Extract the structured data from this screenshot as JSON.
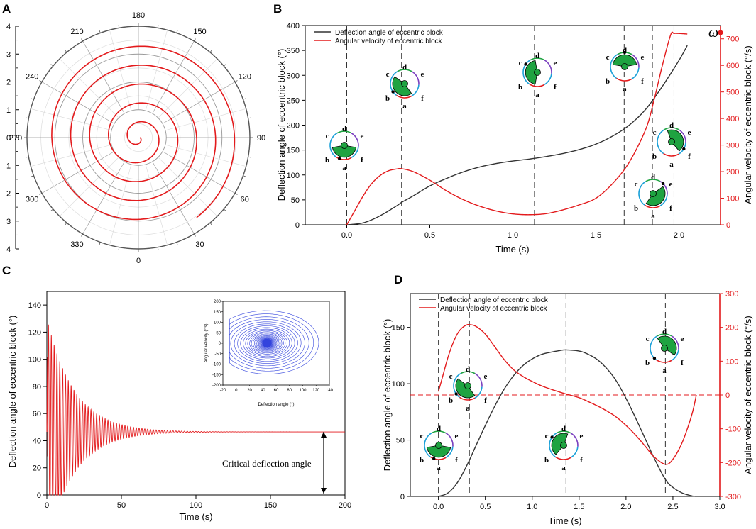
{
  "colors": {
    "deflection": "#333333",
    "angular": "#e31a1c",
    "phase": "#3344dd",
    "green": "#1fa341"
  },
  "panel_labels": [
    "A",
    "B",
    "C",
    "D"
  ],
  "chart_data": [
    {
      "id": "A",
      "type": "polar",
      "series_name": "Deflection angle of eccentric block",
      "radial_ticks_left": [
        "4",
        "3",
        "2",
        "1",
        "0",
        "1",
        "2",
        "3",
        "4"
      ],
      "angle_labels": [
        "180",
        "210",
        "240",
        "270",
        "300",
        "330",
        "0",
        "30",
        "60",
        "90",
        "120",
        "150"
      ],
      "angle_label_degrees": [
        180,
        210,
        240,
        270,
        300,
        330,
        0,
        30,
        60,
        90,
        120,
        150
      ],
      "r_max": 4,
      "spiral": {
        "r_start": 0.05,
        "r_end": 3.55,
        "turns": 5.15,
        "start_angle": 270
      }
    },
    {
      "id": "B",
      "type": "line",
      "xlabel": "Time (s)",
      "ylabel_left": "Deflection angle of eccentric block (°)",
      "ylabel_right": "Angular velocity of eccentric block (°/s)",
      "xlim": [
        -0.25,
        2.25
      ],
      "ylim_left": [
        0,
        400
      ],
      "ylim_right": [
        0,
        750
      ],
      "x_ticks": [
        0.0,
        0.5,
        1.0,
        1.5,
        2.0
      ],
      "x_tick_labels": [
        "0.0",
        "0.5",
        "1.0",
        "1.5",
        "2.0"
      ],
      "y_ticks_left": [
        0,
        50,
        100,
        150,
        200,
        250,
        300,
        350,
        400
      ],
      "y_ticks_right": [
        0,
        100,
        200,
        300,
        400,
        500,
        600,
        700
      ],
      "legend": [
        "Deflection angle of eccentric block",
        "Angular velocity of eccentric block"
      ],
      "omega_label": "ω",
      "vlines": [
        0.0,
        0.33,
        1.13,
        1.67,
        1.84,
        1.97
      ],
      "series": [
        {
          "name": "Deflection angle of eccentric block",
          "axis": "left",
          "x": [
            0,
            0.1,
            0.2,
            0.3,
            0.33,
            0.4,
            0.5,
            0.6,
            0.7,
            0.8,
            0.9,
            1.0,
            1.1,
            1.2,
            1.3,
            1.4,
            1.5,
            1.6,
            1.7,
            1.8,
            1.9,
            2.0,
            2.05
          ],
          "y": [
            0,
            4,
            18,
            38,
            45,
            58,
            78,
            93,
            106,
            116,
            123,
            128,
            132,
            137,
            143,
            151,
            162,
            178,
            200,
            232,
            278,
            330,
            360
          ]
        },
        {
          "name": "Angular velocity of eccentric block",
          "axis": "right",
          "x": [
            0,
            0.05,
            0.1,
            0.15,
            0.2,
            0.25,
            0.3,
            0.33,
            0.4,
            0.5,
            0.6,
            0.7,
            0.8,
            0.9,
            1.0,
            1.1,
            1.2,
            1.3,
            1.4,
            1.5,
            1.6,
            1.7,
            1.8,
            1.85,
            1.9,
            1.95,
            1.97,
            2.0,
            2.05
          ],
          "y": [
            0,
            55,
            110,
            155,
            185,
            203,
            210,
            211,
            200,
            168,
            128,
            95,
            70,
            52,
            41,
            38,
            42,
            56,
            75,
            100,
            155,
            235,
            360,
            470,
            600,
            715,
            720,
            720,
            718
          ]
        }
      ],
      "glyph_labels": [
        "a",
        "b",
        "c",
        "d",
        "e",
        "f"
      ]
    },
    {
      "id": "C",
      "type": "line",
      "xlabel": "Time (s)",
      "ylabel": "Deflection angle of eccentric block (°)",
      "xlim": [
        0,
        200
      ],
      "ylim": [
        0,
        150
      ],
      "x_ticks": [
        0,
        50,
        100,
        150,
        200
      ],
      "y_ticks": [
        0,
        20,
        40,
        60,
        80,
        100,
        120,
        140
      ],
      "series": [
        {
          "name": "Deflection angle of eccentric block",
          "equilibrium": 46.5,
          "initial_amplitude": 84,
          "peak": 130,
          "period": 1.9,
          "decay": 0.055
        }
      ],
      "annotation": "Critical deflection angle",
      "inset": {
        "type": "phase",
        "xlabel": "Deflection angle (°)",
        "ylabel": "Angular velocity (°/s)",
        "xlim": [
          -20,
          140
        ],
        "ylim": [
          -200,
          200
        ],
        "x_ticks": [
          -20,
          0,
          20,
          40,
          60,
          80,
          100,
          120,
          140
        ],
        "y_ticks": [
          -200,
          -150,
          -100,
          -50,
          0,
          50,
          100,
          150,
          200
        ],
        "center": [
          46.5,
          0
        ]
      }
    },
    {
      "id": "D",
      "type": "line",
      "xlabel": "Time (s)",
      "ylabel_left": "Deflection angle of eccentric block (°)",
      "ylabel_right": "Angular velocity of eccentric block (°/s)",
      "xlim": [
        -0.3,
        3.0
      ],
      "ylim_left": [
        0,
        180
      ],
      "ylim_right": [
        -300,
        300
      ],
      "x_ticks": [
        0.0,
        0.5,
        1.0,
        1.5,
        2.0,
        2.5,
        3.0
      ],
      "x_tick_labels": [
        "0.0",
        "0.5",
        "1.0",
        "1.5",
        "2.0",
        "2.5",
        "3.0"
      ],
      "y_ticks_left": [
        0,
        50,
        100,
        150
      ],
      "y_ticks_right": [
        -300,
        -200,
        -100,
        0,
        100,
        200,
        300
      ],
      "legend": [
        "Deflection angle of eccentric block",
        "Angular velocity of eccentric block"
      ],
      "vlines": [
        0.0,
        0.33,
        1.36,
        2.42
      ],
      "hline_right": 0,
      "series": [
        {
          "name": "Deflection angle of eccentric block",
          "axis": "left",
          "x": [
            0,
            0.1,
            0.2,
            0.3,
            0.4,
            0.5,
            0.6,
            0.7,
            0.8,
            0.9,
            1.0,
            1.1,
            1.2,
            1.3,
            1.36,
            1.5,
            1.6,
            1.7,
            1.8,
            1.9,
            2.0,
            2.1,
            2.2,
            2.3,
            2.42,
            2.5,
            2.6,
            2.7,
            2.75
          ],
          "y": [
            0,
            3,
            12,
            27,
            45,
            63,
            80,
            95,
            107,
            116,
            122,
            126,
            128,
            129.5,
            130,
            129,
            126,
            121,
            113,
            102,
            87,
            70,
            52,
            34,
            15,
            8,
            3,
            0.5,
            0
          ]
        },
        {
          "name": "Angular velocity of eccentric block",
          "axis": "right",
          "x": [
            0,
            0.05,
            0.1,
            0.15,
            0.2,
            0.25,
            0.3,
            0.33,
            0.4,
            0.5,
            0.6,
            0.7,
            0.8,
            0.9,
            1.0,
            1.1,
            1.2,
            1.3,
            1.36,
            1.5,
            1.6,
            1.7,
            1.8,
            1.9,
            2.0,
            2.1,
            2.2,
            2.3,
            2.42,
            2.5,
            2.6,
            2.7,
            2.75
          ],
          "y": [
            10,
            60,
            110,
            150,
            180,
            198,
            207,
            208,
            203,
            180,
            143,
            105,
            75,
            55,
            40,
            27,
            17,
            8,
            3,
            -8,
            -20,
            -33,
            -48,
            -66,
            -90,
            -118,
            -150,
            -183,
            -205,
            -190,
            -140,
            -60,
            0
          ]
        }
      ],
      "glyph_labels": [
        "a",
        "b",
        "c",
        "d",
        "e",
        "f"
      ]
    }
  ]
}
